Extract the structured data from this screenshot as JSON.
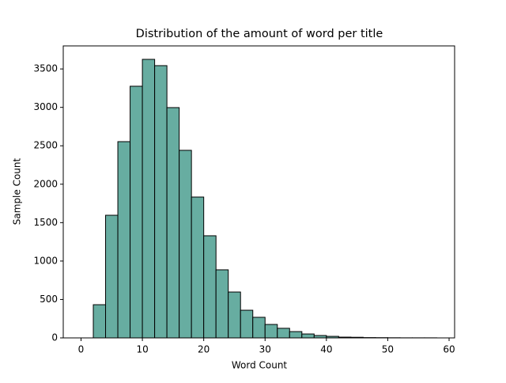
{
  "chart_data": {
    "type": "histogram",
    "title": "Distribution of the amount of word per title",
    "x_label": "Word Count",
    "y_label": "Sample Count",
    "bins": [
      0,
      2,
      4,
      6,
      8,
      10,
      12,
      14,
      16,
      18,
      20,
      22,
      24,
      26,
      28,
      30,
      32,
      34,
      36,
      38,
      40,
      42,
      44,
      46,
      48,
      50,
      52,
      54,
      56,
      58
    ],
    "values": [
      0,
      432,
      1596,
      2554,
      3275,
      3625,
      3543,
      2997,
      2441,
      1833,
      1329,
      886,
      597,
      360,
      268,
      175,
      125,
      82,
      51,
      31,
      20,
      10,
      8,
      4,
      3,
      2,
      1,
      1,
      1
    ],
    "color": "#67ada1",
    "edgecolor": "#000000",
    "xlim": [
      -2.9,
      60.9
    ],
    "ylim": [
      0,
      3800
    ],
    "xticks": [
      0,
      10,
      20,
      30,
      40,
      50,
      60
    ],
    "yticks": [
      0,
      500,
      1000,
      1500,
      2000,
      2500,
      3000,
      3500
    ]
  }
}
